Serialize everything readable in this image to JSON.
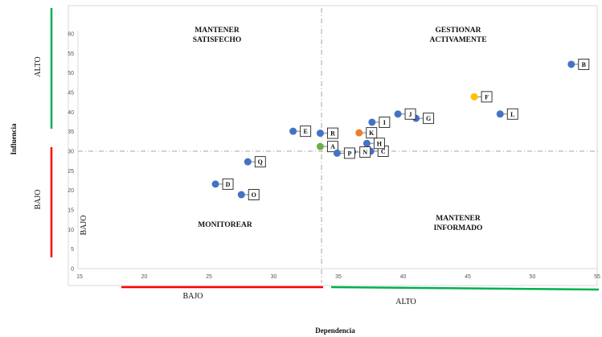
{
  "chart_data": {
    "type": "scatter",
    "title": "",
    "xlabel": "Dependencia",
    "ylabel": "Influencia",
    "xlim": [
      15,
      55
    ],
    "ylim": [
      0,
      60
    ],
    "x_ticks": [
      15,
      20,
      25,
      30,
      35,
      40,
      45,
      50,
      55
    ],
    "y_ticks": [
      0,
      5,
      10,
      15,
      20,
      25,
      30,
      35,
      40,
      45,
      50,
      55,
      60
    ],
    "grid": false,
    "threshold": {
      "x": 33.7,
      "y": 30
    },
    "quadrants": {
      "top_left": "MANTENER SATISFECHO",
      "top_right": "GESTIONAR ACTIVAMENTE",
      "bottom_left": "MONITOREAR",
      "bottom_right": "MANTENER INFORMADO"
    },
    "side_labels": {
      "y_high": "ALTO",
      "y_low": "BAJO",
      "y_low_inner": "BAJO",
      "x_low": "BAJO",
      "x_high": "ALTO"
    },
    "colors": {
      "default": "#4472C4",
      "green": "#70AD47",
      "orange": "#ED7D31",
      "yellow": "#FFC000",
      "alto_line": "#00B050",
      "bajo_line": "#FF0000",
      "divider": "#A6A6A6"
    },
    "points": [
      {
        "label": "A",
        "x": 33.6,
        "y": 31.2,
        "color": "green"
      },
      {
        "label": "B",
        "x": 53.0,
        "y": 52.2,
        "color": "default"
      },
      {
        "label": "C",
        "x": 37.5,
        "y": 30.0,
        "color": "default"
      },
      {
        "label": "D",
        "x": 25.5,
        "y": 21.6,
        "color": "default"
      },
      {
        "label": "E",
        "x": 31.5,
        "y": 35.1,
        "color": "default"
      },
      {
        "label": "F",
        "x": 45.5,
        "y": 43.9,
        "color": "yellow"
      },
      {
        "label": "G",
        "x": 41.0,
        "y": 38.4,
        "color": "default"
      },
      {
        "label": "H",
        "x": 37.2,
        "y": 32.0,
        "color": "default"
      },
      {
        "label": "I",
        "x": 37.6,
        "y": 37.4,
        "color": "default"
      },
      {
        "label": "J",
        "x": 39.6,
        "y": 39.5,
        "color": "default"
      },
      {
        "label": "K",
        "x": 36.6,
        "y": 34.7,
        "color": "orange"
      },
      {
        "label": "L",
        "x": 47.5,
        "y": 39.5,
        "color": "default"
      },
      {
        "label": "N",
        "x": 36.1,
        "y": 29.8,
        "color": "default"
      },
      {
        "label": "O",
        "x": 27.5,
        "y": 18.9,
        "color": "default"
      },
      {
        "label": "P",
        "x": 34.9,
        "y": 29.5,
        "color": "default"
      },
      {
        "label": "Q",
        "x": 28.0,
        "y": 27.3,
        "color": "default"
      },
      {
        "label": "R",
        "x": 33.6,
        "y": 34.6,
        "color": "default"
      }
    ]
  }
}
